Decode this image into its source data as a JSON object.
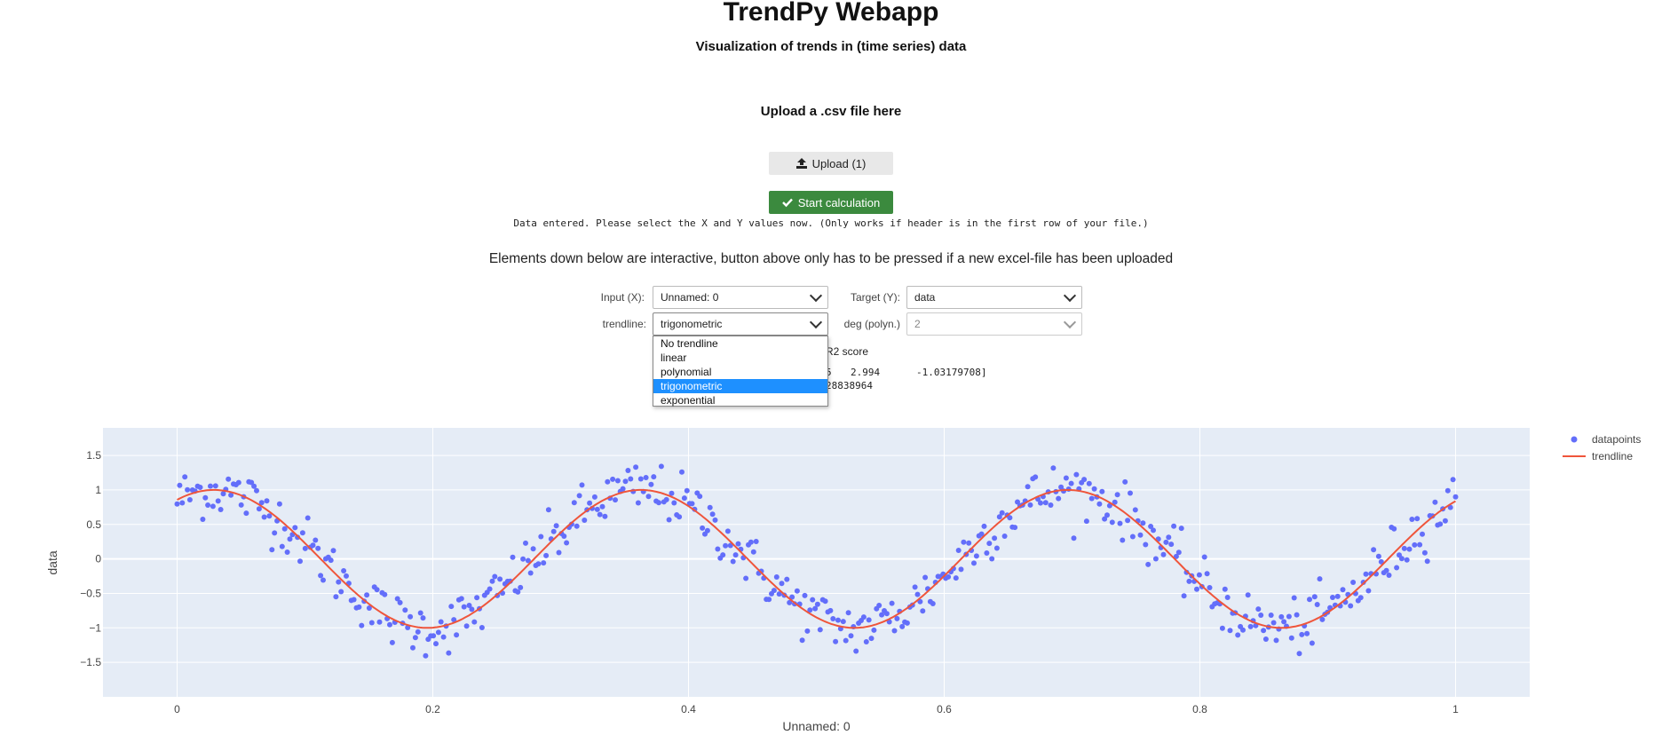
{
  "header": {
    "title": "TrendPy Webapp",
    "subtitle": "Visualization of trends in (time series) data"
  },
  "upload": {
    "label": "Upload a .csv file here",
    "button_label": "Upload (1)",
    "icon": "upload-icon"
  },
  "start": {
    "button_label": "Start calculation",
    "icon": "check-icon",
    "color": "#3b8a3e"
  },
  "status_text": "Data entered. Please select the X and Y values now. (Only works if header is in the first row of your file.)",
  "info_text": "Elements down below are interactive, button above only has to be pressed if a new excel-file has been uploaded",
  "controls": {
    "input_x_label": "Input (X):",
    "input_x_value": "Unnamed: 0",
    "target_y_label": "Target (Y):",
    "target_y_value": "data",
    "trendline_label": "trendline:",
    "trendline_value": "trigonometric",
    "deg_label": "deg (polyn.)",
    "deg_value": "2"
  },
  "dropdown": {
    "options": [
      "No trendline",
      "linear",
      "polynomial",
      "trigonometric",
      "exponential"
    ],
    "selected_index": 3
  },
  "results": {
    "r2_label": "R2 score",
    "line1_a": "5",
    "line1_b": "2.994",
    "line1_c": "-1.03179708]",
    "line2": "28838964"
  },
  "chart_data": {
    "type": "scatter",
    "title": "",
    "xlabel": "Unnamed: 0",
    "ylabel": "data",
    "xlim": [
      -0.058,
      1.058
    ],
    "ylim": [
      -2.0,
      1.9
    ],
    "x_ticks": [
      "0",
      "0.2",
      "0.4",
      "0.6",
      "0.8",
      "1"
    ],
    "y_ticks": [
      "1.5",
      "1",
      "0.5",
      "0",
      "−0.5",
      "−1",
      "−1.5"
    ],
    "series": [
      {
        "name": "datapoints",
        "mode": "markers",
        "color": "#636efa",
        "n_points": 500,
        "model": "y = sin(2*pi*2.994*x + 1.03) + noise"
      },
      {
        "name": "trendline",
        "mode": "line",
        "color": "#ef553b",
        "model": "y ≈ 1.0*sin(2*pi*2.994*x + 1.03)"
      }
    ],
    "legend": "top-right",
    "grid": true,
    "plot_bgcolor": "#e5ecf6"
  }
}
